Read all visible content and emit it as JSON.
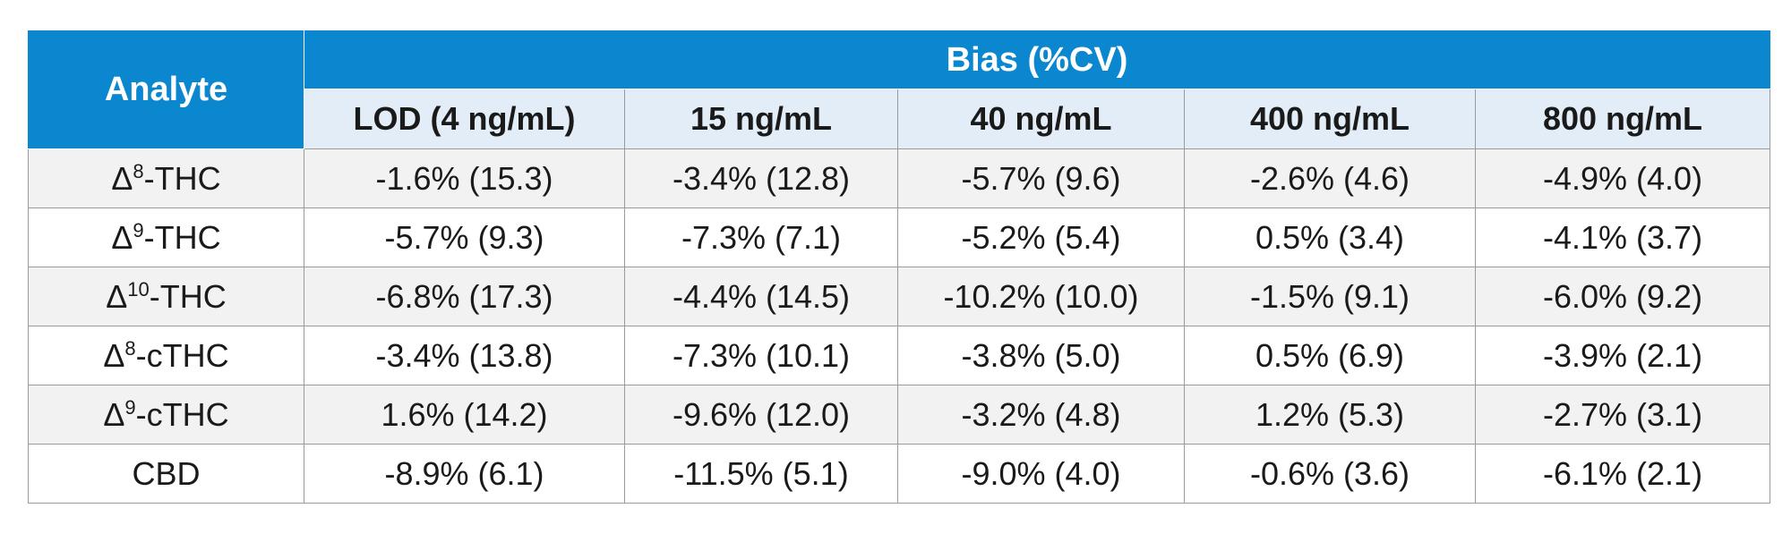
{
  "table": {
    "analyte_header": "Analyte",
    "group_header": "Bias (%CV)",
    "columns": [
      "LOD (4 ng/mL)",
      "15 ng/mL",
      "40 ng/mL",
      "400 ng/mL",
      "800 ng/mL"
    ],
    "rows": [
      {
        "prefix": "Δ",
        "sup": "8",
        "suffix": "-THC",
        "values": [
          "-1.6% (15.3)",
          "-3.4% (12.8)",
          "-5.7% (9.6)",
          "-2.6% (4.6)",
          "-4.9% (4.0)"
        ]
      },
      {
        "prefix": "Δ",
        "sup": "9",
        "suffix": "-THC",
        "values": [
          "-5.7% (9.3)",
          "-7.3% (7.1)",
          "-5.2% (5.4)",
          "0.5% (3.4)",
          "-4.1% (3.7)"
        ]
      },
      {
        "prefix": "Δ",
        "sup": "10",
        "suffix": "-THC",
        "values": [
          "-6.8% (17.3)",
          "-4.4% (14.5)",
          "-10.2% (10.0)",
          "-1.5% (9.1)",
          "-6.0% (9.2)"
        ]
      },
      {
        "prefix": "Δ",
        "sup": "8",
        "suffix": "-cTHC",
        "values": [
          "-3.4% (13.8)",
          "-7.3% (10.1)",
          "-3.8% (5.0)",
          "0.5% (6.9)",
          "-3.9% (2.1)"
        ]
      },
      {
        "prefix": "Δ",
        "sup": "9",
        "suffix": "-cTHC",
        "values": [
          "1.6% (14.2)",
          "-9.6% (12.0)",
          "-3.2% (4.8)",
          "1.2% (5.3)",
          "-2.7% (3.1)"
        ]
      },
      {
        "prefix": "",
        "sup": "",
        "suffix": "CBD",
        "values": [
          "-8.9% (6.1)",
          "-11.5% (5.1)",
          "-9.0% (4.0)",
          "-0.6% (3.6)",
          "-6.1% (2.1)"
        ]
      }
    ]
  },
  "colors": {
    "header_blue": "#0a87cf",
    "subheader_bg": "#e2edf8",
    "row_alt_bg": "#f2f2f2",
    "border": "#9a9a9a"
  }
}
